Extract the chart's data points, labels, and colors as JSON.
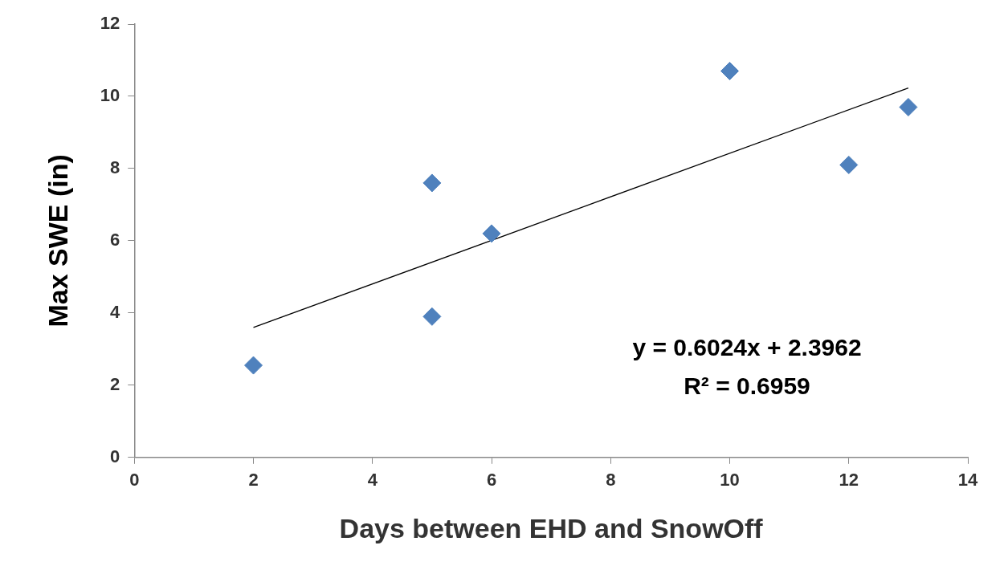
{
  "chart_data": {
    "type": "scatter",
    "xlabel": "Days between EHD and SnowOff",
    "ylabel": "Max SWE (in)",
    "xlim": [
      0,
      14
    ],
    "xticks": [
      0,
      2,
      4,
      6,
      8,
      10,
      12,
      14
    ],
    "ylim": [
      0,
      12
    ],
    "yticks": [
      0,
      2,
      4,
      6,
      8,
      10,
      12
    ],
    "grid": false,
    "legend": false,
    "marker": "diamond",
    "series": [
      {
        "type": "scatter",
        "color": "#4f81bd",
        "x": [
          2,
          5,
          5,
          6,
          10,
          12,
          13
        ],
        "values": [
          2.55,
          7.6,
          3.9,
          6.2,
          10.7,
          8.1,
          9.7
        ]
      },
      {
        "type": "line",
        "color": "#000000",
        "marker": "none",
        "x": [
          2,
          13
        ],
        "values": [
          3.6,
          10.23
        ]
      }
    ],
    "annotations": [
      "y = 0.6024x + 2.3962",
      "R² = 0.6959"
    ]
  }
}
